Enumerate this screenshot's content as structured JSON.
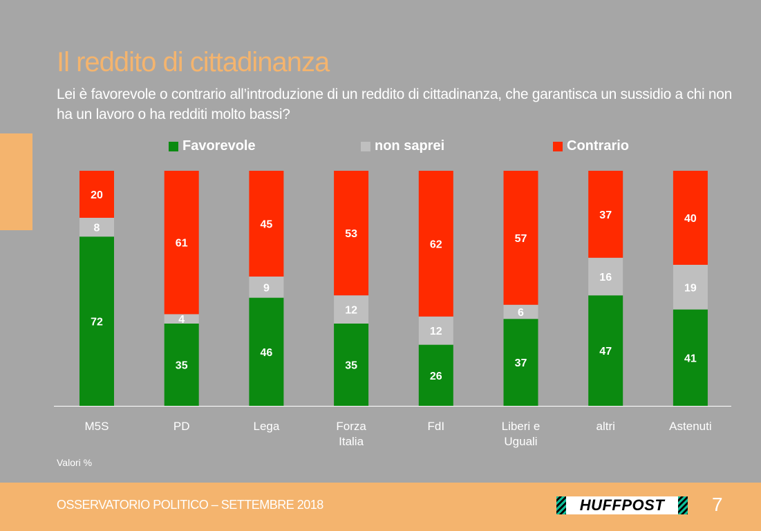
{
  "title": "Il reddito di cittadinanza",
  "subtitle": "Lei è favorevole o contrario all’introduzione di un reddito di cittadinanza, che garantisca un sussidio a chi non ha un lavoro o ha redditi molto bassi?",
  "unit_note": "Valori %",
  "footer": {
    "text": "OSSERVATORIO POLITICO – SETTEMBRE 2018",
    "logo": "HUFFPOST",
    "page_number": "7"
  },
  "colors": {
    "favorevole": "#0b8a10",
    "non_saprei": "#bfbfbf",
    "contrario": "#ff2a00",
    "accent": "#f4b46e",
    "background": "#a6a6a6"
  },
  "chart_data": {
    "type": "bar",
    "stacked": true,
    "orientation": "vertical",
    "categories": [
      "M5S",
      "PD",
      "Lega",
      "Forza Italia",
      "FdI",
      "Liberi e Uguali",
      "altri",
      "Astenuti"
    ],
    "category_lines": [
      [
        "M5S"
      ],
      [
        "PD"
      ],
      [
        "Lega"
      ],
      [
        "Forza",
        "Italia"
      ],
      [
        "FdI"
      ],
      [
        "Liberi e",
        "Uguali"
      ],
      [
        "altri"
      ],
      [
        "Astenuti"
      ]
    ],
    "series": [
      {
        "name": "Favorevole",
        "color": "#0b8a10",
        "values": [
          72,
          35,
          46,
          35,
          26,
          37,
          47,
          41
        ]
      },
      {
        "name": "non saprei",
        "color": "#bfbfbf",
        "values": [
          8,
          4,
          9,
          12,
          12,
          6,
          16,
          19
        ]
      },
      {
        "name": "Contrario",
        "color": "#ff2a00",
        "values": [
          20,
          61,
          45,
          53,
          62,
          57,
          37,
          40
        ]
      }
    ],
    "ylim": [
      0,
      100
    ],
    "grid": false,
    "legend_position": "top"
  }
}
